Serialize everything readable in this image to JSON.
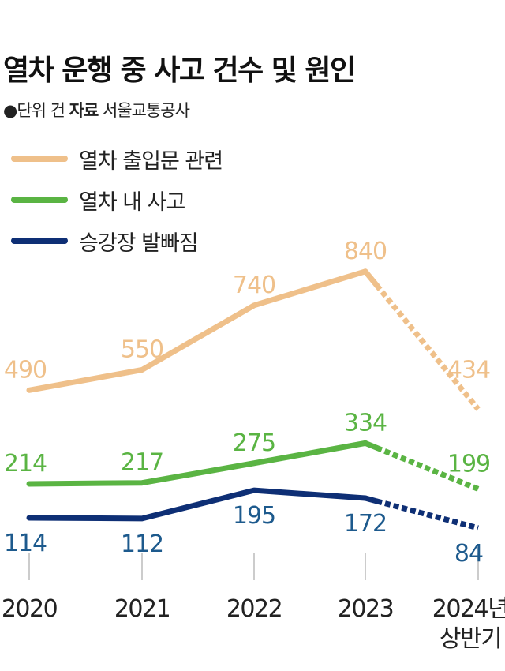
{
  "title": "열차 운행 중 사고 건수 및 원인",
  "subtitle": {
    "bullet": "●",
    "unit": "단위 건",
    "source_label": "자료",
    "source": "서울교통공사"
  },
  "chart_data": {
    "type": "line",
    "title": "열차 운행 중 사고 건수 및 원인",
    "categories": [
      "2020",
      "2021",
      "2022",
      "2023",
      "2024년 상반기"
    ],
    "category_lines": [
      [
        "2020"
      ],
      [
        "2021"
      ],
      [
        "2022"
      ],
      [
        "2023"
      ],
      [
        "2024년",
        "상반기"
      ]
    ],
    "last_segment_dashed": true,
    "legend_position": "top-left",
    "grid": false,
    "series": [
      {
        "name": "열차 출입문 관련",
        "values": [
          490,
          550,
          740,
          840,
          434
        ],
        "color": "#efc08a",
        "label_color": "#efc08a",
        "label_pos": "above"
      },
      {
        "name": "열차 내 사고",
        "values": [
          214,
          217,
          275,
          334,
          199
        ],
        "color": "#5ab443",
        "label_color": "#5ab443",
        "label_pos": "above"
      },
      {
        "name": "승강장 발빠짐",
        "values": [
          114,
          112,
          195,
          172,
          84
        ],
        "color": "#0e2f75",
        "label_color": "#1d5a8d",
        "label_pos": "below"
      }
    ]
  }
}
